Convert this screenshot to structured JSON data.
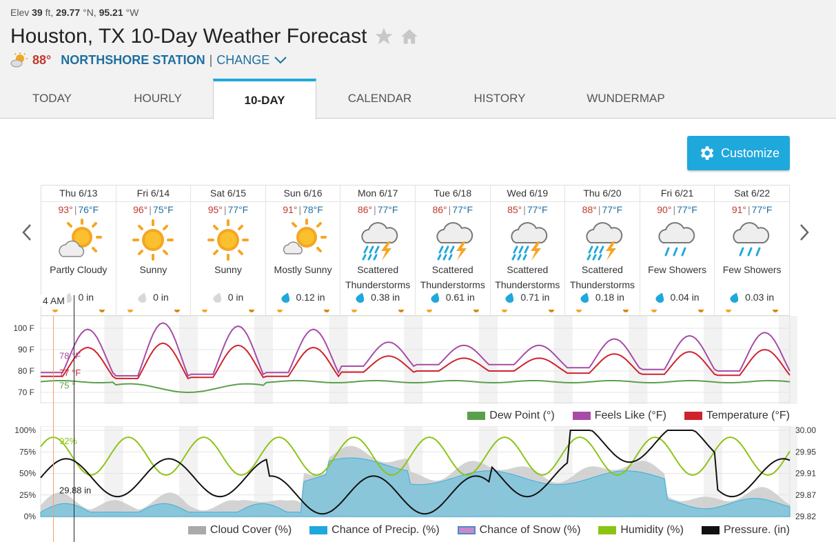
{
  "header": {
    "elevation": "39",
    "lat": "29.77",
    "lon": "95.21",
    "title": "Houston, TX 10-Day Weather Forecast",
    "current_temp": "88°",
    "station": "NORTHSHORE STATION",
    "separator": "|",
    "change_label": "CHANGE"
  },
  "tabs": [
    {
      "label": "TODAY"
    },
    {
      "label": "HOURLY"
    },
    {
      "label": "10-DAY",
      "active": true
    },
    {
      "label": "CALENDAR"
    },
    {
      "label": "HISTORY"
    },
    {
      "label": "WUNDERMAP"
    }
  ],
  "customize_label": "Customize",
  "days": [
    {
      "date": "Thu 6/13",
      "hi": "93°",
      "lo": "76°F",
      "cond1": "Partly Cloudy",
      "cond2": "",
      "precip": "0 in",
      "icon": "partly-cloudy"
    },
    {
      "date": "Fri 6/14",
      "hi": "96°",
      "lo": "75°F",
      "cond1": "Sunny",
      "cond2": "",
      "precip": "0 in",
      "icon": "sunny"
    },
    {
      "date": "Sat 6/15",
      "hi": "95°",
      "lo": "77°F",
      "cond1": "Sunny",
      "cond2": "",
      "precip": "0 in",
      "icon": "sunny"
    },
    {
      "date": "Sun 6/16",
      "hi": "91°",
      "lo": "78°F",
      "cond1": "Mostly Sunny",
      "cond2": "",
      "precip": "0.12 in",
      "icon": "mostly-sunny"
    },
    {
      "date": "Mon 6/17",
      "hi": "86°",
      "lo": "77°F",
      "cond1": "Scattered",
      "cond2": "Thunderstorms",
      "precip": "0.38 in",
      "icon": "thunderstorm"
    },
    {
      "date": "Tue 6/18",
      "hi": "86°",
      "lo": "77°F",
      "cond1": "Scattered",
      "cond2": "Thunderstorms",
      "precip": "0.61 in",
      "icon": "thunderstorm"
    },
    {
      "date": "Wed 6/19",
      "hi": "85°",
      "lo": "77°F",
      "cond1": "Scattered",
      "cond2": "Thunderstorms",
      "precip": "0.71 in",
      "icon": "thunderstorm"
    },
    {
      "date": "Thu 6/20",
      "hi": "88°",
      "lo": "77°F",
      "cond1": "Scattered",
      "cond2": "Thunderstorms",
      "precip": "0.18 in",
      "icon": "thunderstorm"
    },
    {
      "date": "Fri 6/21",
      "hi": "90°",
      "lo": "77°F",
      "cond1": "Few Showers",
      "cond2": "",
      "precip": "0.04 in",
      "icon": "showers"
    },
    {
      "date": "Sat 6/22",
      "hi": "91°",
      "lo": "77°F",
      "cond1": "Few Showers",
      "cond2": "",
      "precip": "0.03 in",
      "icon": "showers"
    }
  ],
  "time_label": "4 AM",
  "chart_temp": {
    "y_ticks": [
      "100 F",
      "90 F",
      "80 F",
      "70 F"
    ],
    "readouts": {
      "feels": "78 °F",
      "temp": "77 °F",
      "dew": "75 °"
    },
    "legend": [
      "Dew Point (°)",
      "Feels Like (°F)",
      "Temperature (°F)"
    ],
    "colors": {
      "dew": "#5aa04a",
      "feels": "#a64ca6",
      "temp": "#d0222c"
    }
  },
  "chart_pct": {
    "y_ticks_left": [
      "100%",
      "75%",
      "50%",
      "25%",
      "0%"
    ],
    "y_ticks_right": [
      "30.00",
      "29.95",
      "29.91",
      "29.87",
      "29.82"
    ],
    "readouts": {
      "humidity": "92%",
      "pressure": "29.88 in"
    },
    "legend": [
      "Cloud Cover (%)",
      "Chance of Precip. (%)",
      "Chance of Snow (%)",
      "Humidity (%)",
      "Pressure. (in)"
    ],
    "colors": {
      "cloud": "#aaaaaa",
      "precip": "#1fa8dc",
      "snow": "#c88ac8",
      "humidity": "#8cc414",
      "pressure": "#111111"
    }
  }
}
